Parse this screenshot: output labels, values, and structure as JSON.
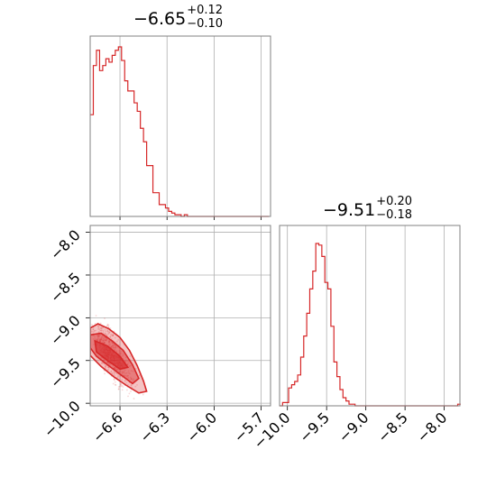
{
  "chart_data": [
    {
      "type": "histogram",
      "panel": "marginal-param-1",
      "title_value": "−6.65",
      "title_plus": "+0.12",
      "title_minus": "−0.10",
      "xlim": [
        -6.79,
        -5.64
      ],
      "ticks": [
        -6.6,
        -6.3,
        -6.0,
        -5.7
      ],
      "bin_width": 0.02,
      "counts": [
        0.6,
        0.89,
        0.98,
        0.86,
        0.89,
        0.93,
        0.91,
        0.95,
        0.98,
        1.0,
        0.92,
        0.8,
        0.74,
        0.74,
        0.67,
        0.62,
        0.52,
        0.44,
        0.3,
        0.3,
        0.14,
        0.14,
        0.07,
        0.07,
        0.05,
        0.03,
        0.02,
        0.01,
        0.01,
        0.0,
        0.01,
        0.0,
        0.0,
        0.0,
        0.0,
        0.0,
        0.0,
        0.0,
        0.0,
        0.0,
        0.0,
        0.0,
        0.0,
        0.0,
        0.0,
        0.0,
        0.0,
        0.0,
        0.0,
        0.0,
        0.0,
        0.0,
        0.0,
        0.0,
        0.0,
        0.0,
        0.0
      ],
      "color": "#d62728",
      "grid": true
    },
    {
      "type": "scatter",
      "panel": "joint-param-1-param-2",
      "xlim": [
        -6.79,
        -5.64
      ],
      "ylim": [
        -10.03,
        -7.92
      ],
      "xticks": [
        -6.6,
        -6.3,
        -6.0,
        -5.7
      ],
      "xtick_labels": [
        "−6.6",
        "−6.3",
        "−6.0",
        "−5.7"
      ],
      "yticks": [
        -8.0,
        -8.5,
        -9.0,
        -9.5,
        -10.0
      ],
      "ytick_labels": [
        "−8.0",
        "−8.5",
        "−9.0",
        "−9.5",
        "−10.0"
      ],
      "contours": [
        {
          "level": "outer",
          "points": [
            [
              -6.79,
              -9.12
            ],
            [
              -6.74,
              -9.07
            ],
            [
              -6.67,
              -9.13
            ],
            [
              -6.6,
              -9.23
            ],
            [
              -6.54,
              -9.38
            ],
            [
              -6.49,
              -9.56
            ],
            [
              -6.45,
              -9.74
            ],
            [
              -6.43,
              -9.86
            ],
            [
              -6.48,
              -9.88
            ],
            [
              -6.56,
              -9.79
            ],
            [
              -6.64,
              -9.69
            ],
            [
              -6.72,
              -9.57
            ],
            [
              -6.79,
              -9.44
            ]
          ]
        },
        {
          "level": "middle",
          "points": [
            [
              -6.79,
              -9.2
            ],
            [
              -6.72,
              -9.18
            ],
            [
              -6.65,
              -9.27
            ],
            [
              -6.58,
              -9.38
            ],
            [
              -6.52,
              -9.55
            ],
            [
              -6.48,
              -9.71
            ],
            [
              -6.52,
              -9.77
            ],
            [
              -6.6,
              -9.66
            ],
            [
              -6.68,
              -9.55
            ],
            [
              -6.75,
              -9.45
            ],
            [
              -6.79,
              -9.35
            ]
          ]
        },
        {
          "level": "inner",
          "points": [
            [
              -6.76,
              -9.27
            ],
            [
              -6.68,
              -9.33
            ],
            [
              -6.6,
              -9.45
            ],
            [
              -6.55,
              -9.58
            ],
            [
              -6.6,
              -9.6
            ],
            [
              -6.68,
              -9.5
            ],
            [
              -6.75,
              -9.4
            ]
          ]
        }
      ],
      "color": "#d62728",
      "grid": true
    },
    {
      "type": "histogram",
      "panel": "marginal-param-2",
      "title_value": "−9.51",
      "title_plus": "+0.20",
      "title_minus": "−0.18",
      "xlim": [
        -10.1,
        -7.8
      ],
      "xticks": [
        -10.0,
        -9.5,
        -9.0,
        -8.5,
        -8.0
      ],
      "xtick_labels": [
        "−10.0",
        "−9.5",
        "−9.0",
        "−8.5",
        "−8.0"
      ],
      "bin_start": -10.1,
      "bin_width": 0.0385,
      "counts": [
        0.0,
        0.02,
        0.02,
        0.11,
        0.13,
        0.15,
        0.19,
        0.3,
        0.43,
        0.57,
        0.72,
        0.83,
        1.0,
        0.99,
        0.92,
        0.76,
        0.72,
        0.49,
        0.27,
        0.18,
        0.1,
        0.05,
        0.03,
        0.01,
        0.01,
        0.0,
        0.0,
        0.0,
        0.0,
        0.0,
        0.0,
        0.0,
        0.0,
        0.0,
        0.0,
        0.0,
        0.0,
        0.0,
        0.0,
        0.0,
        0.0,
        0.0,
        0.0,
        0.0,
        0.0,
        0.0,
        0.0,
        0.0,
        0.0,
        0.0,
        0.0,
        0.0,
        0.0,
        0.0,
        0.0,
        0.0,
        0.0,
        0.0,
        0.0,
        0.01
      ],
      "color": "#d62728",
      "grid": true
    }
  ]
}
